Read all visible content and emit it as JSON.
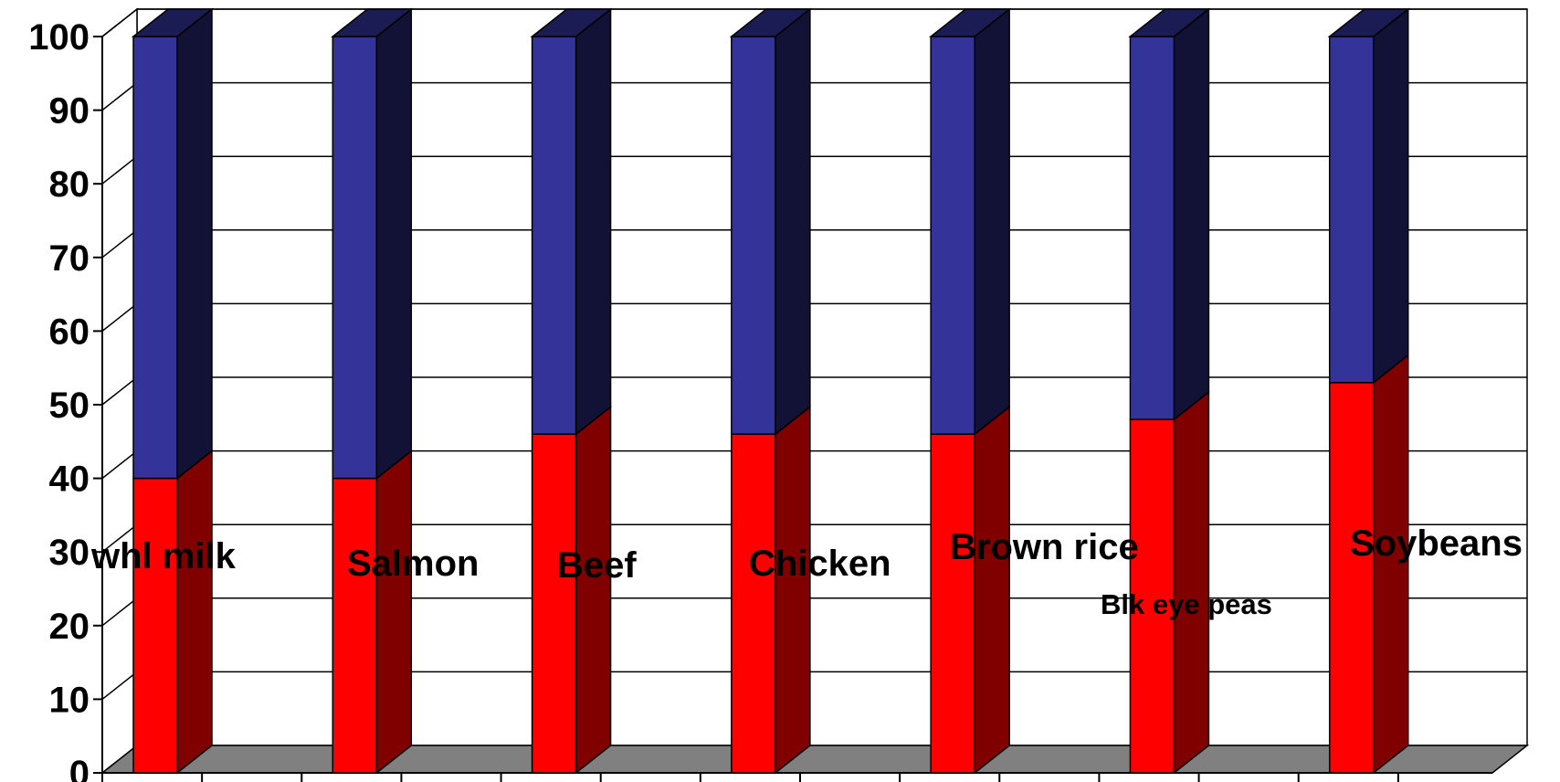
{
  "chart_data": {
    "type": "bar",
    "stacked": true,
    "three_d": true,
    "categories": [
      "whl milk",
      "Salmon",
      "Beef",
      "Chicken",
      "Brown rice",
      "Blk eye peas",
      "Soybeans"
    ],
    "series": [
      {
        "values": [
          40,
          40,
          46,
          46,
          46,
          48,
          53
        ],
        "color": "#ff0000"
      },
      {
        "values": [
          60,
          60,
          54,
          54,
          54,
          52,
          47
        ],
        "color": "#333399"
      }
    ],
    "ylim": [
      0,
      100
    ],
    "yticks": [
      "0",
      "10",
      "20",
      "30",
      "40",
      "50",
      "60",
      "70",
      "80",
      "90",
      "100"
    ],
    "grid": true,
    "floor_color": "#808080",
    "title": "",
    "xlabel": "",
    "ylabel": ""
  }
}
